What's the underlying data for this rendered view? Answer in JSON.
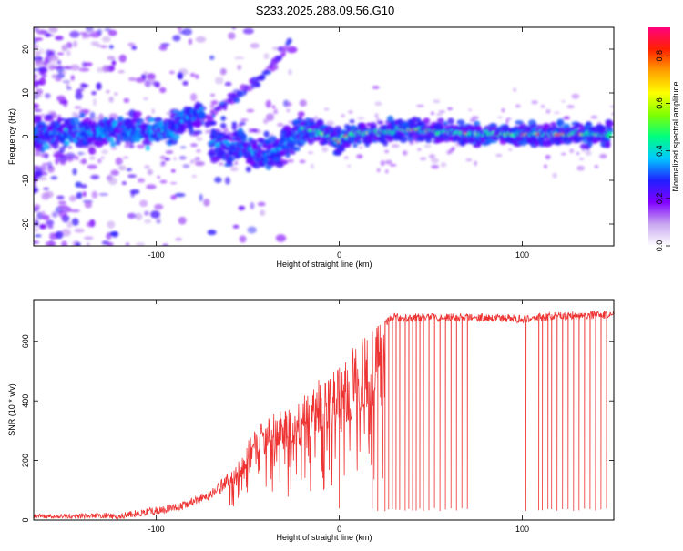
{
  "title": "S233.2025.288.09.56.G10",
  "chart_data": [
    {
      "type": "heatmap",
      "xlabel": "Height of straight line (km)",
      "ylabel": "Frequency (Hz)",
      "xlim": [
        -167,
        150
      ],
      "ylim": [
        -25,
        25
      ],
      "x_ticks": [
        -100,
        0,
        100
      ],
      "y_ticks": [
        20,
        10,
        0,
        -10,
        -20
      ],
      "colorbar": {
        "label": "Normalized spectral amplitude",
        "range": [
          0.0,
          0.92
        ],
        "ticks": [
          0.0,
          0.2,
          0.4,
          0.6,
          0.8
        ],
        "colormap": [
          "#ffffff",
          "#c8a6f0",
          "#8000ff",
          "#2020ff",
          "#00c8ff",
          "#00ff80",
          "#80ff00",
          "#ffff00",
          "#ffa000",
          "#ff2000",
          "#ff0080"
        ]
      },
      "ridge": {
        "main": [
          [
            -167,
            0.5
          ],
          [
            -140,
            1.0
          ],
          [
            -110,
            1.5
          ],
          [
            -95,
            1.0
          ],
          [
            -85,
            3.5
          ],
          [
            -75,
            6.0
          ]
        ],
        "branch": [
          [
            -70,
            -1.5
          ],
          [
            -55,
            -2.0
          ],
          [
            -40,
            -4.5
          ],
          [
            -30,
            -2.0
          ],
          [
            -20,
            2.0
          ],
          [
            -10,
            1.0
          ],
          [
            -5,
            0.0
          ],
          [
            0,
            -1.5
          ],
          [
            5,
            0.5
          ],
          [
            20,
            1.0
          ],
          [
            40,
            1.5
          ],
          [
            60,
            1.0
          ],
          [
            80,
            0.5
          ],
          [
            100,
            0.5
          ],
          [
            120,
            0.5
          ],
          [
            140,
            0.5
          ],
          [
            148,
            0.5
          ]
        ],
        "upper_arc": [
          [
            -75,
            3.0
          ],
          [
            -60,
            8.0
          ],
          [
            -45,
            12.5
          ],
          [
            -35,
            17.0
          ],
          [
            -27,
            22.0
          ]
        ]
      }
    },
    {
      "type": "line",
      "xlabel": "Height of straight line (km)",
      "ylabel": "SNR (10 * v/v)",
      "xlim": [
        -167,
        150
      ],
      "ylim": [
        0,
        740
      ],
      "x_ticks": [
        -100,
        0,
        100
      ],
      "y_ticks": [
        0,
        200,
        400,
        600
      ],
      "series_color": "#ee3333",
      "envelope": [
        [
          -167,
          20
        ],
        [
          -120,
          25
        ],
        [
          -90,
          55
        ],
        [
          -70,
          100
        ],
        [
          -55,
          200
        ],
        [
          -45,
          330
        ],
        [
          -30,
          380
        ],
        [
          -20,
          420
        ],
        [
          -10,
          480
        ],
        [
          0,
          520
        ],
        [
          10,
          600
        ],
        [
          20,
          650
        ],
        [
          30,
          680
        ],
        [
          50,
          680
        ],
        [
          80,
          680
        ],
        [
          100,
          675
        ],
        [
          120,
          685
        ],
        [
          150,
          690
        ]
      ],
      "dropouts": [
        0,
        18,
        21,
        25,
        27,
        29,
        31,
        33,
        36,
        38,
        40,
        42,
        44,
        46,
        49,
        52,
        55,
        58,
        61,
        64,
        67,
        70,
        102,
        109,
        111,
        114,
        116,
        119,
        122,
        125,
        128,
        131,
        134,
        137,
        140,
        143,
        146
      ]
    }
  ]
}
